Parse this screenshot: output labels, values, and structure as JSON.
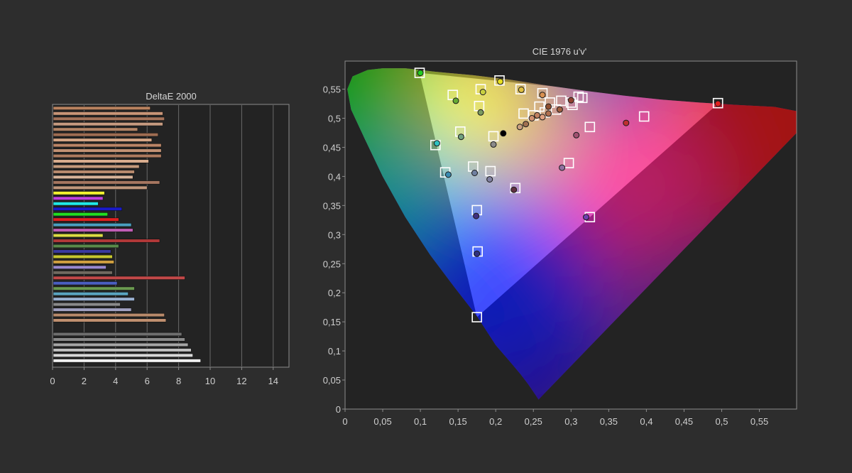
{
  "chart_data": [
    {
      "type": "bar",
      "orientation": "horizontal",
      "title": "DeltaE 2000",
      "xlim": [
        0,
        15
      ],
      "xticks": [
        "0",
        "2",
        "4",
        "6",
        "8",
        "10",
        "12",
        "14"
      ],
      "grid": true,
      "bars": [
        {
          "value": 6.2,
          "color": "#b9825f"
        },
        {
          "value": 7.0,
          "color": "#c89577"
        },
        {
          "value": 7.1,
          "color": "#a5735a"
        },
        {
          "value": 7.0,
          "color": "#c69a80"
        },
        {
          "value": 5.4,
          "color": "#b38466"
        },
        {
          "value": 6.7,
          "color": "#9f6d52"
        },
        {
          "value": 6.3,
          "color": "#d4a585"
        },
        {
          "value": 6.9,
          "color": "#bb8567"
        },
        {
          "value": 6.9,
          "color": "#c29274"
        },
        {
          "value": 6.9,
          "color": "#ad7b5f"
        },
        {
          "value": 6.1,
          "color": "#d8ac8e"
        },
        {
          "value": 5.5,
          "color": "#c59a7c"
        },
        {
          "value": 5.2,
          "color": "#b88a6e"
        },
        {
          "value": 5.1,
          "color": "#d9b49a"
        },
        {
          "value": 6.8,
          "color": "#a67660"
        },
        {
          "value": 6.0,
          "color": "#c0977c"
        },
        {
          "value": 3.3,
          "color": "#f2f230"
        },
        {
          "value": 3.2,
          "color": "#c040e0"
        },
        {
          "value": 2.9,
          "color": "#20e8e8"
        },
        {
          "value": 4.4,
          "color": "#1a1ac8"
        },
        {
          "value": 3.5,
          "color": "#22dd22"
        },
        {
          "value": 4.2,
          "color": "#e02020"
        },
        {
          "value": 5.0,
          "color": "#4aa0c0"
        },
        {
          "value": 5.1,
          "color": "#c05db5"
        },
        {
          "value": 3.2,
          "color": "#dddd44"
        },
        {
          "value": 6.8,
          "color": "#b03838"
        },
        {
          "value": 4.2,
          "color": "#5a8a4a"
        },
        {
          "value": 3.7,
          "color": "#3a3aa0"
        },
        {
          "value": 3.8,
          "color": "#c8c830"
        },
        {
          "value": 3.9,
          "color": "#d0a040"
        },
        {
          "value": 3.4,
          "color": "#9a8ad0"
        },
        {
          "value": 3.8,
          "color": "#706a60"
        },
        {
          "value": 8.4,
          "color": "#c24848"
        },
        {
          "value": 4.1,
          "color": "#4a5ec0"
        },
        {
          "value": 5.2,
          "color": "#6a9a50"
        },
        {
          "value": 4.8,
          "color": "#5aa4c0"
        },
        {
          "value": 5.2,
          "color": "#9ab0d0"
        },
        {
          "value": 4.3,
          "color": "#8a8a8a"
        },
        {
          "value": 5.0,
          "color": "#a0a0c0"
        },
        {
          "value": 7.1,
          "color": "#b88a6a"
        },
        {
          "value": 7.2,
          "color": "#c09070"
        },
        {
          "value": 8.2,
          "color": "#6e6e6e"
        },
        {
          "value": 8.4,
          "color": "#8a8a8a"
        },
        {
          "value": 8.6,
          "color": "#a6a6a6"
        },
        {
          "value": 8.8,
          "color": "#c0c0c0"
        },
        {
          "value": 8.9,
          "color": "#d8d8d8"
        },
        {
          "value": 9.4,
          "color": "#f0f0f0"
        }
      ]
    },
    {
      "type": "scatter",
      "title": "CIE 1976 u'v'",
      "xlim": [
        0,
        0.6
      ],
      "ylim": [
        0,
        0.6
      ],
      "xticks": [
        "0",
        "0,05",
        "0,1",
        "0,15",
        "0,2",
        "0,25",
        "0,3",
        "0,35",
        "0,4",
        "0,45",
        "0,5",
        "0,55"
      ],
      "yticks": [
        "0",
        "0,05",
        "0,1",
        "0,15",
        "0,2",
        "0,25",
        "0,3",
        "0,35",
        "0,4",
        "0,45",
        "0,5",
        "0,55"
      ],
      "gamut_triangle": {
        "red": [
          0.496,
          0.526
        ],
        "green": [
          0.099,
          0.578
        ],
        "blue": [
          0.175,
          0.158
        ]
      },
      "targets": [
        [
          0.099,
          0.578
        ],
        [
          0.205,
          0.565
        ],
        [
          0.143,
          0.54
        ],
        [
          0.18,
          0.55
        ],
        [
          0.233,
          0.55
        ],
        [
          0.262,
          0.543
        ],
        [
          0.31,
          0.537
        ],
        [
          0.315,
          0.535
        ],
        [
          0.178,
          0.521
        ],
        [
          0.495,
          0.526
        ],
        [
          0.237,
          0.508
        ],
        [
          0.258,
          0.52
        ],
        [
          0.272,
          0.527
        ],
        [
          0.287,
          0.53
        ],
        [
          0.3,
          0.527
        ],
        [
          0.302,
          0.523
        ],
        [
          0.25,
          0.505
        ],
        [
          0.265,
          0.51
        ],
        [
          0.28,
          0.515
        ],
        [
          0.397,
          0.503
        ],
        [
          0.325,
          0.485
        ],
        [
          0.197,
          0.469
        ],
        [
          0.153,
          0.477
        ],
        [
          0.12,
          0.454
        ],
        [
          0.133,
          0.407
        ],
        [
          0.17,
          0.417
        ],
        [
          0.193,
          0.409
        ],
        [
          0.226,
          0.38
        ],
        [
          0.297,
          0.423
        ],
        [
          0.325,
          0.33
        ],
        [
          0.175,
          0.342
        ],
        [
          0.176,
          0.271
        ],
        [
          0.175,
          0.158
        ]
      ],
      "measured": [
        {
          "u": 0.1,
          "v": 0.578,
          "color": "#22cc22"
        },
        {
          "u": 0.206,
          "v": 0.563,
          "color": "#e8e020"
        },
        {
          "u": 0.147,
          "v": 0.53,
          "color": "#66aa33"
        },
        {
          "u": 0.183,
          "v": 0.545,
          "color": "#c8d040"
        },
        {
          "u": 0.234,
          "v": 0.549,
          "color": "#e0c040"
        },
        {
          "u": 0.262,
          "v": 0.54,
          "color": "#d89050"
        },
        {
          "u": 0.18,
          "v": 0.51,
          "color": "#7a9a60"
        },
        {
          "u": 0.21,
          "v": 0.474,
          "color": "#000000"
        },
        {
          "u": 0.232,
          "v": 0.485,
          "color": "#caa080"
        },
        {
          "u": 0.24,
          "v": 0.49,
          "color": "#a07050"
        },
        {
          "u": 0.248,
          "v": 0.5,
          "color": "#d09070"
        },
        {
          "u": 0.255,
          "v": 0.505,
          "color": "#c08060"
        },
        {
          "u": 0.262,
          "v": 0.502,
          "color": "#e0a080"
        },
        {
          "u": 0.27,
          "v": 0.508,
          "color": "#b07050"
        },
        {
          "u": 0.27,
          "v": 0.52,
          "color": "#905030"
        },
        {
          "u": 0.285,
          "v": 0.515,
          "color": "#a06040"
        },
        {
          "u": 0.3,
          "v": 0.531,
          "color": "#904030"
        },
        {
          "u": 0.307,
          "v": 0.471,
          "color": "#a05070"
        },
        {
          "u": 0.373,
          "v": 0.492,
          "color": "#c03030"
        },
        {
          "u": 0.495,
          "v": 0.525,
          "color": "#e02020"
        },
        {
          "u": 0.197,
          "v": 0.455,
          "color": "#8a8a8a"
        },
        {
          "u": 0.154,
          "v": 0.468,
          "color": "#70a080"
        },
        {
          "u": 0.122,
          "v": 0.457,
          "color": "#30c0c0"
        },
        {
          "u": 0.137,
          "v": 0.403,
          "color": "#3a8ab0"
        },
        {
          "u": 0.172,
          "v": 0.406,
          "color": "#7080a0"
        },
        {
          "u": 0.192,
          "v": 0.395,
          "color": "#8080a0"
        },
        {
          "u": 0.224,
          "v": 0.377,
          "color": "#603040"
        },
        {
          "u": 0.288,
          "v": 0.415,
          "color": "#9070a0"
        },
        {
          "u": 0.32,
          "v": 0.33,
          "color": "#7040b0"
        },
        {
          "u": 0.174,
          "v": 0.332,
          "color": "#403080"
        },
        {
          "u": 0.175,
          "v": 0.267,
          "color": "#303080"
        }
      ]
    }
  ]
}
